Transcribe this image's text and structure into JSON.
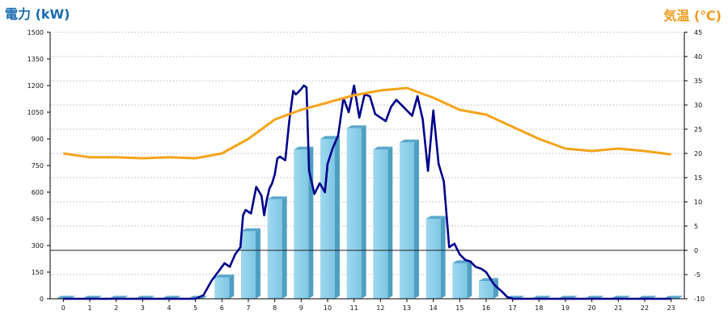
{
  "chart_data": {
    "type": "bar",
    "left_axis_label": "電力 (kW)",
    "right_axis_label": "気温 (℃)",
    "categories": [
      "0",
      "1",
      "2",
      "3",
      "4",
      "5",
      "6",
      "7",
      "8",
      "9",
      "10",
      "11",
      "12",
      "13",
      "14",
      "15",
      "16",
      "17",
      "18",
      "19",
      "20",
      "21",
      "22",
      "23"
    ],
    "y_ticks": [
      0,
      150,
      300,
      450,
      600,
      750,
      900,
      1050,
      1200,
      1350,
      1500
    ],
    "y2_ticks": [
      -10,
      -5,
      0,
      5,
      10,
      15,
      20,
      25,
      30,
      35,
      40,
      45
    ],
    "ylim": [
      0,
      1500
    ],
    "y2lim": [
      -10,
      45
    ],
    "grid": true,
    "series": [
      {
        "type": "bar",
        "axis": "left",
        "color": "#87cde8",
        "values": [
          0,
          0,
          0,
          0,
          0,
          0,
          120,
          380,
          560,
          840,
          900,
          960,
          840,
          880,
          450,
          200,
          100,
          0,
          0,
          0,
          0,
          0,
          0,
          0
        ]
      },
      {
        "type": "line",
        "axis": "left",
        "color": "#00008b",
        "x": [
          0,
          1,
          2,
          3,
          4,
          5,
          5.3,
          5.6,
          5.9,
          6.1,
          6.3,
          6.5,
          6.7,
          6.8,
          6.9,
          7.1,
          7.3,
          7.5,
          7.6,
          7.7,
          7.8,
          7.9,
          8.0,
          8.1,
          8.2,
          8.4,
          8.55,
          8.7,
          8.8,
          9.0,
          9.1,
          9.2,
          9.3,
          9.5,
          9.7,
          9.9,
          10.0,
          10.2,
          10.4,
          10.6,
          10.8,
          11.0,
          11.2,
          11.4,
          11.6,
          11.8,
          12.0,
          12.2,
          12.4,
          12.6,
          12.8,
          13.0,
          13.2,
          13.4,
          13.6,
          13.8,
          14.0,
          14.2,
          14.4,
          14.6,
          14.8,
          15.0,
          15.2,
          15.4,
          15.6,
          15.8,
          16.0,
          16.3,
          16.6,
          16.8,
          17,
          18,
          19,
          20,
          21,
          22,
          23
        ],
        "values": [
          0,
          0,
          0,
          0,
          0,
          0,
          20,
          100,
          160,
          200,
          180,
          250,
          290,
          470,
          500,
          480,
          630,
          580,
          470,
          560,
          620,
          650,
          700,
          790,
          800,
          780,
          1000,
          1170,
          1150,
          1180,
          1200,
          1190,
          720,
          590,
          650,
          600,
          760,
          850,
          920,
          1130,
          1050,
          1200,
          1020,
          1150,
          1140,
          1040,
          1020,
          1000,
          1080,
          1120,
          1090,
          1060,
          1030,
          1140,
          1010,
          720,
          1060,
          760,
          660,
          290,
          310,
          250,
          220,
          210,
          180,
          170,
          150,
          80,
          40,
          10,
          0,
          0,
          0,
          0,
          0,
          0,
          0
        ]
      },
      {
        "type": "line",
        "axis": "right",
        "color": "#f5a31a",
        "x": [
          0,
          1,
          2,
          3,
          4,
          5,
          6,
          7,
          8,
          9,
          10,
          11,
          12,
          13,
          14,
          15,
          16,
          17,
          18,
          19,
          20,
          21,
          22,
          23
        ],
        "values": [
          20,
          19.2,
          19.2,
          19,
          19.2,
          19,
          20,
          23,
          27,
          29,
          30.5,
          32,
          33,
          33.5,
          31.5,
          29,
          28,
          25.5,
          23,
          21,
          20.5,
          21,
          20.5,
          19.8
        ]
      }
    ],
    "reference_line": {
      "axis": "right",
      "value": 0
    }
  }
}
